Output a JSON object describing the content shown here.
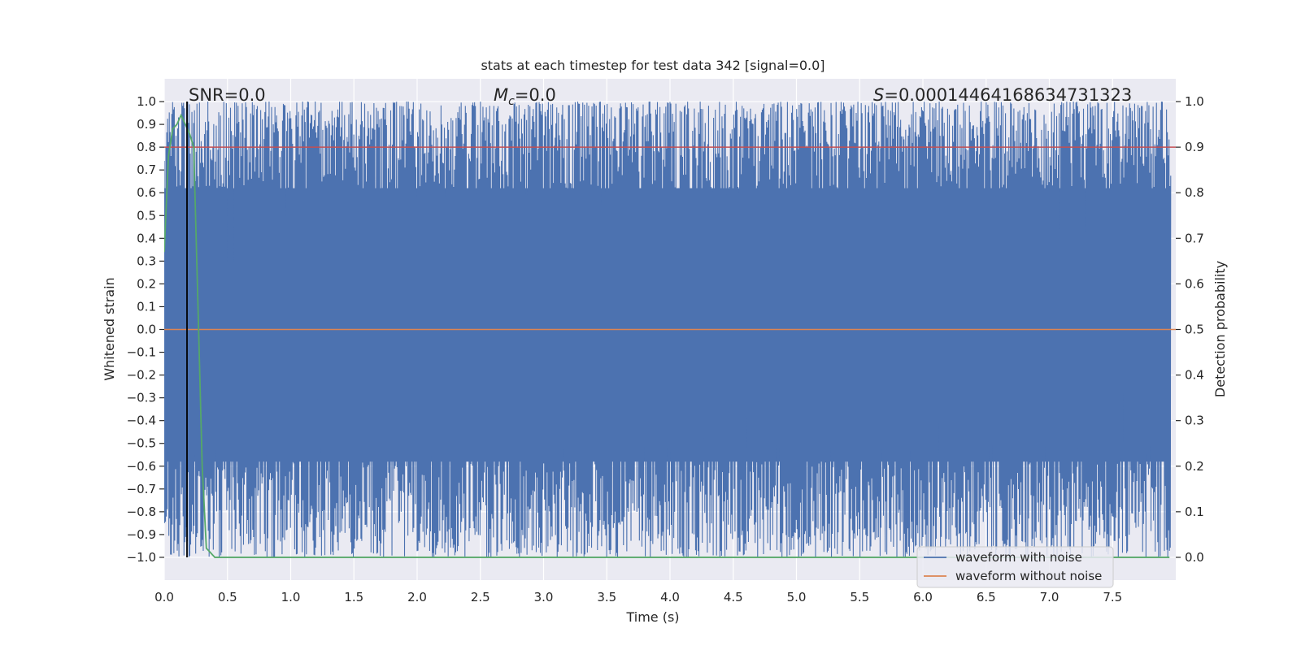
{
  "chart_data": {
    "type": "line",
    "title": "stats at each timestep for test data 342 [signal=0.0]",
    "xlabel": "Time (s)",
    "ylabel": "Whitened strain",
    "y2label": "Detection probability",
    "xlim": [
      0.0,
      8.0
    ],
    "ylim": [
      -1.1,
      1.1
    ],
    "y2lim": [
      -0.05,
      1.05
    ],
    "x_ticks": [
      "0.0",
      "0.5",
      "1.0",
      "1.5",
      "2.0",
      "2.5",
      "3.0",
      "3.5",
      "4.0",
      "4.5",
      "5.0",
      "5.5",
      "6.0",
      "6.5",
      "7.0",
      "7.5"
    ],
    "y_ticks": [
      "1.0",
      "0.9",
      "0.8",
      "0.7",
      "0.6",
      "0.5",
      "0.4",
      "0.3",
      "0.2",
      "0.1",
      "0.0",
      "−0.1",
      "−0.2",
      "−0.3",
      "−0.4",
      "−0.5",
      "−0.6",
      "−0.7",
      "−0.8",
      "−0.9",
      "−1.0"
    ],
    "y2_ticks": [
      "1.0",
      "0.9",
      "0.8",
      "0.7",
      "0.6",
      "0.5",
      "0.4",
      "0.3",
      "0.2",
      "0.1",
      "0.0"
    ],
    "grid": true,
    "legend_position": "lower-right",
    "annotations": {
      "snr": "SNR=0.0",
      "mc_symbol": "M",
      "mc_sub": "c",
      "mc_value": "=0.0",
      "s_symbol": "S",
      "s_value": "=0.00014464168634731323"
    },
    "series": [
      {
        "name": "waveform with noise",
        "color": "#4c72b0",
        "description_range": [
          -1.0,
          1.0
        ]
      },
      {
        "name": "waveform without noise",
        "color": "#dd8452",
        "x": [
          0.0,
          8.0
        ],
        "y": [
          0.0,
          0.0
        ]
      }
    ],
    "threshold": {
      "axis": "right",
      "value": 0.9,
      "color": "#c44e52"
    },
    "detection_probability": {
      "color": "#55a868",
      "x": [
        0.0,
        0.033,
        0.067,
        0.1,
        0.133,
        0.167,
        0.2,
        0.233,
        0.267,
        0.3,
        0.333,
        0.367,
        0.4,
        7.95
      ],
      "y": [
        0.67,
        0.88,
        0.94,
        0.95,
        0.97,
        0.95,
        0.93,
        0.9,
        0.55,
        0.2,
        0.02,
        0.01,
        0.0,
        0.0
      ]
    },
    "marker_line": {
      "x": 0.18,
      "color": "#000000"
    }
  },
  "colors": {
    "axes_bg": "#eaeaf2",
    "grid": "#ffffff",
    "text": "#262626"
  }
}
